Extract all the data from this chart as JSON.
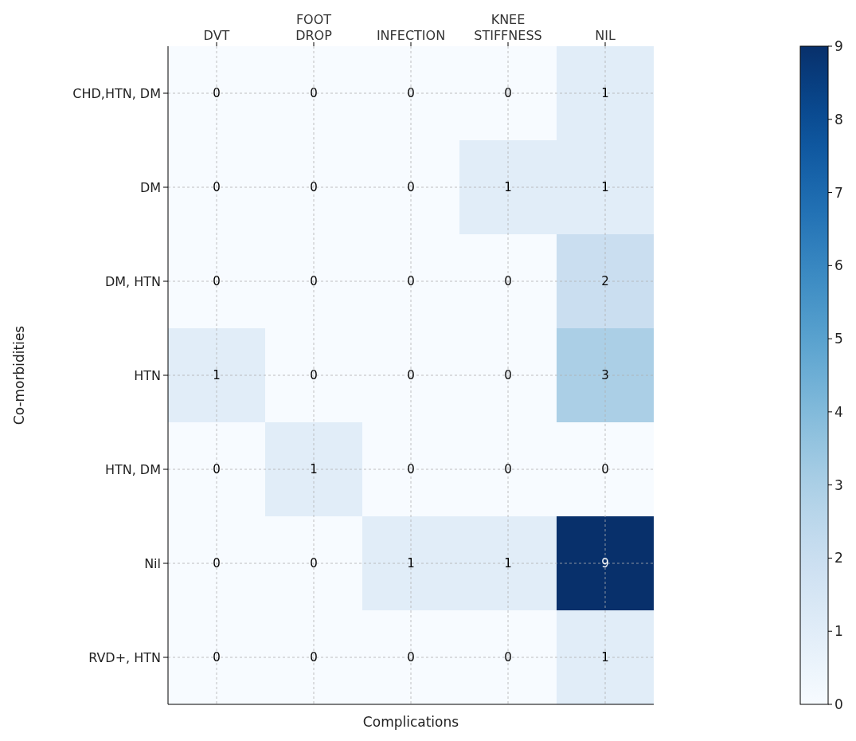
{
  "chart_data": {
    "type": "heatmap",
    "xlabel": "Complications",
    "ylabel": "Co-morbidities",
    "categories": [
      "DVT",
      "FOOT DROP",
      "INFECTION",
      "KNEE STIFFNESS",
      "NIL"
    ],
    "y_categories": [
      "CHD,HTN, DM",
      "DM",
      "DM, HTN",
      "HTN",
      "HTN, DM",
      "Nil",
      "RVD+, HTN"
    ],
    "cells": [
      [
        0,
        0,
        0,
        0,
        1
      ],
      [
        0,
        0,
        0,
        1,
        1
      ],
      [
        0,
        0,
        0,
        0,
        2
      ],
      [
        1,
        0,
        0,
        0,
        3
      ],
      [
        0,
        1,
        0,
        0,
        0
      ],
      [
        0,
        0,
        1,
        1,
        9
      ],
      [
        0,
        0,
        0,
        0,
        1
      ]
    ],
    "clim": [
      0,
      9
    ],
    "cticks": [
      0,
      1,
      2,
      3,
      4,
      5,
      6,
      7,
      8,
      9
    ],
    "grid": true,
    "data_labels": true
  }
}
